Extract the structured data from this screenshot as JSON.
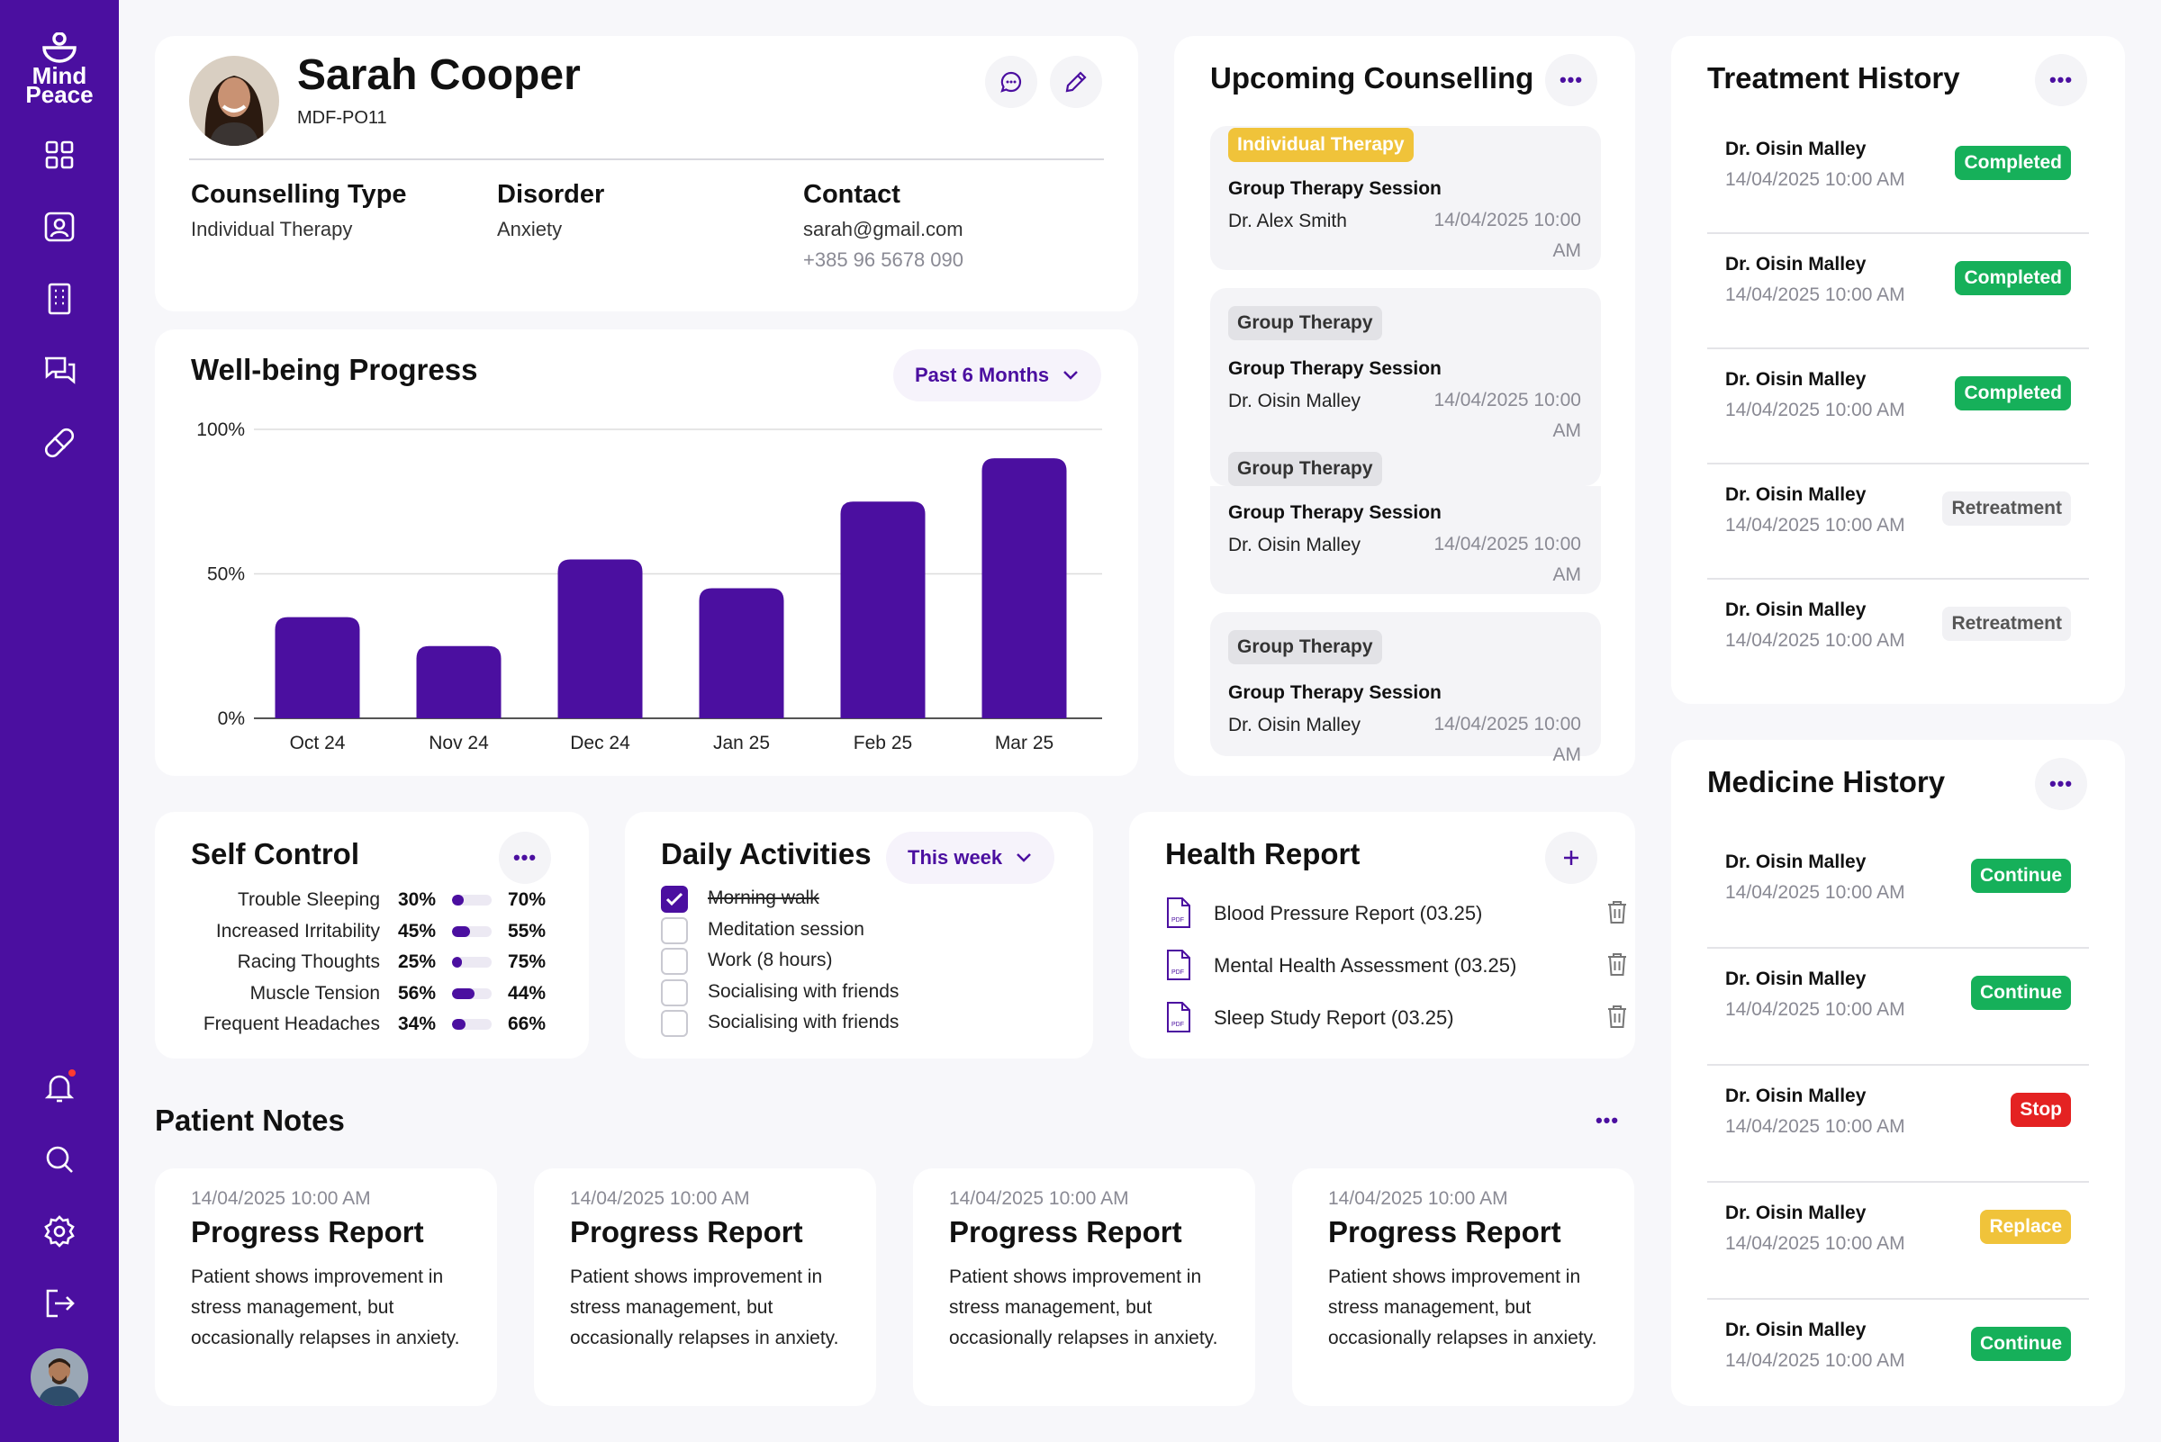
{
  "app": {
    "logo_line1": "Mind",
    "logo_line2": "Peace"
  },
  "profile": {
    "name": "Sarah Cooper",
    "id": "MDF-PO11",
    "fields": [
      {
        "label": "Counselling Type",
        "values": [
          "Individual Therapy"
        ]
      },
      {
        "label": "Disorder",
        "values": [
          "Anxiety"
        ]
      },
      {
        "label": "Contact",
        "values": [
          "sarah@gmail.com",
          "+385 96 5678 090"
        ]
      }
    ]
  },
  "wellbeing": {
    "title": "Well-being Progress",
    "filter": "Past 6 Months"
  },
  "chart_data": {
    "type": "bar",
    "categories": [
      "Oct 24",
      "Nov 24",
      "Dec 24",
      "Jan 25",
      "Feb 25",
      "Mar 25"
    ],
    "values": [
      35,
      25,
      55,
      45,
      75,
      90
    ],
    "yticks": [
      "0%",
      "50%",
      "100%"
    ],
    "ylim": [
      0,
      100
    ],
    "color": "#4b0fa0",
    "grid": true
  },
  "counselling": {
    "title": "Upcoming Counselling",
    "sessions": [
      {
        "tag": "Individual Therapy",
        "title": "Group Therapy Session",
        "doctor": "Dr. Alex Smith",
        "time": "14/04/2025 10:00 AM"
      },
      {
        "tag": "Group Therapy",
        "title": "Group Therapy Session",
        "doctor": "Dr. Oisin Malley",
        "time": "14/04/2025 10:00 AM"
      },
      {
        "tag": "Group Therapy",
        "title": "Group Therapy Session",
        "doctor": "Dr. Oisin Malley",
        "time": "14/04/2025 10:00 AM"
      },
      {
        "tag": "Group Therapy",
        "title": "Group Therapy Session",
        "doctor": "Dr. Oisin Malley",
        "time": "14/04/2025 10:00 AM"
      }
    ]
  },
  "treatment": {
    "title": "Treatment History",
    "items": [
      {
        "doctor": "Dr. Oisin Malley",
        "time": "14/04/2025 10:00 AM",
        "status": "Completed"
      },
      {
        "doctor": "Dr. Oisin Malley",
        "time": "14/04/2025 10:00 AM",
        "status": "Completed"
      },
      {
        "doctor": "Dr. Oisin Malley",
        "time": "14/04/2025 10:00 AM",
        "status": "Completed"
      },
      {
        "doctor": "Dr. Oisin Malley",
        "time": "14/04/2025 10:00 AM",
        "status": "Retreatment"
      },
      {
        "doctor": "Dr. Oisin Malley",
        "time": "14/04/2025 10:00 AM",
        "status": "Retreatment"
      }
    ]
  },
  "medicine": {
    "title": "Medicine History",
    "items": [
      {
        "doctor": "Dr. Oisin Malley",
        "time": "14/04/2025 10:00 AM",
        "status": "Continue"
      },
      {
        "doctor": "Dr. Oisin Malley",
        "time": "14/04/2025 10:00 AM",
        "status": "Continue"
      },
      {
        "doctor": "Dr. Oisin Malley",
        "time": "14/04/2025 10:00 AM",
        "status": "Stop"
      },
      {
        "doctor": "Dr. Oisin Malley",
        "time": "14/04/2025 10:00 AM",
        "status": "Replace"
      },
      {
        "doctor": "Dr. Oisin Malley",
        "time": "14/04/2025 10:00 AM",
        "status": "Continue"
      }
    ]
  },
  "self_control": {
    "title": "Self Control",
    "items": [
      {
        "label": "Trouble Sleeping",
        "left": "30%",
        "right": "70%",
        "level": 30
      },
      {
        "label": "Increased Irritability",
        "left": "45%",
        "right": "55%",
        "level": 45
      },
      {
        "label": "Racing Thoughts",
        "left": "25%",
        "right": "75%",
        "level": 25
      },
      {
        "label": "Muscle Tension",
        "left": "56%",
        "right": "44%",
        "level": 56
      },
      {
        "label": "Frequent Headaches",
        "left": "34%",
        "right": "66%",
        "level": 34
      }
    ]
  },
  "daily": {
    "title": "Daily Activities",
    "filter": "This week",
    "items": [
      {
        "label": "Morning walk",
        "done": true
      },
      {
        "label": "Meditation session",
        "done": false
      },
      {
        "label": "Work (8 hours)",
        "done": false
      },
      {
        "label": "Socialising with friends",
        "done": false
      },
      {
        "label": "Socialising with friends",
        "done": false
      }
    ]
  },
  "health": {
    "title": "Health Report",
    "reports": [
      {
        "label": "Blood Pressure Report (03.25)"
      },
      {
        "label": "Mental Health Assessment (03.25)"
      },
      {
        "label": "Sleep Study Report (03.25)"
      }
    ]
  },
  "notes": {
    "title": "Patient Notes",
    "items": [
      {
        "time": "14/04/2025 10:00 AM",
        "title": "Progress Report",
        "body": "Patient shows improvement in stress management, but occasionally relapses in anxiety."
      },
      {
        "time": "14/04/2025 10:00 AM",
        "title": "Progress Report",
        "body": "Patient shows improvement in stress management, but occasionally relapses in anxiety."
      },
      {
        "time": "14/04/2025 10:00 AM",
        "title": "Progress Report",
        "body": "Patient shows improvement in stress management, but occasionally relapses in anxiety."
      },
      {
        "time": "14/04/2025 10:00 AM",
        "title": "Progress Report",
        "body": "Patient shows improvement in stress management, but occasionally relapses in anxiety."
      }
    ]
  },
  "icons": {
    "nav": [
      "dashboard-icon",
      "patient-icon",
      "building-icon",
      "chat-icon",
      "pill-icon"
    ],
    "bottom": [
      "bell-icon",
      "search-icon",
      "gear-icon",
      "logout-icon"
    ]
  },
  "status_colors": {
    "Completed": "#16b05a",
    "Continue": "#16b05a",
    "Retreatment": "#f1f1f4",
    "Stop": "#e42222",
    "Replace": "#f0c33a"
  }
}
